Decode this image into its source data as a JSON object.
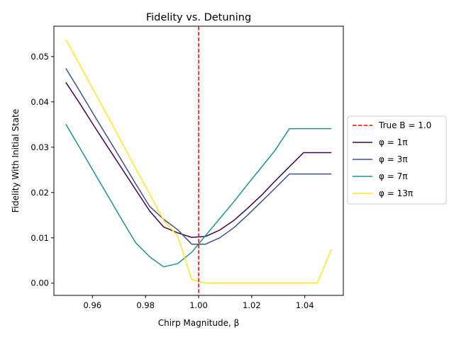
{
  "chart_data": {
    "type": "line",
    "title": "Fidelity vs. Detuning",
    "xlabel": "Chirp Magnitude, β",
    "ylabel": "Fidelity With Initial State",
    "xlim": [
      0.9455,
      1.0545
    ],
    "ylim": [
      -0.0027,
      0.0567
    ],
    "xticks": [
      0.96,
      0.98,
      1.0,
      1.02,
      1.04
    ],
    "xtick_labels": [
      "0.96",
      "0.98",
      "1.00",
      "1.02",
      "1.04"
    ],
    "yticks": [
      0.0,
      0.01,
      0.02,
      0.03,
      0.04,
      0.05
    ],
    "ytick_labels": [
      "0.00",
      "0.01",
      "0.02",
      "0.03",
      "0.04",
      "0.05"
    ],
    "grid": false,
    "legend_position": "outside-right",
    "vline": {
      "x": 1.0,
      "name": "True B = 1.0",
      "color": "#ff0000",
      "dash": "dashed"
    },
    "x": [
      0.95,
      0.9553,
      0.9605,
      0.9658,
      0.9711,
      0.9763,
      0.9816,
      0.9868,
      0.9921,
      0.9974,
      1.0026,
      1.0079,
      1.0132,
      1.0184,
      1.0237,
      1.0289,
      1.0342,
      1.0395,
      1.0447,
      1.05
    ],
    "series": [
      {
        "name": "φ = 1π",
        "color": "#440154",
        "values": [
          0.0443,
          0.0396,
          0.0348,
          0.03,
          0.0253,
          0.0206,
          0.0159,
          0.0124,
          0.0111,
          0.0101,
          0.0103,
          0.0117,
          0.0138,
          0.0165,
          0.0194,
          0.0226,
          0.0257,
          0.0288,
          0.0288,
          0.0288
        ]
      },
      {
        "name": "φ = 3π",
        "color": "#3b528b",
        "values": [
          0.0474,
          0.0423,
          0.0372,
          0.0321,
          0.027,
          0.0219,
          0.0169,
          0.0141,
          0.0118,
          0.0086,
          0.0086,
          0.01,
          0.0122,
          0.015,
          0.018,
          0.021,
          0.0241,
          0.0241,
          0.0241,
          0.0241
        ]
      },
      {
        "name": "φ = 7π",
        "color": "#21918c",
        "values": [
          0.0351,
          0.0298,
          0.0246,
          0.0193,
          0.014,
          0.0089,
          0.0058,
          0.0036,
          0.0043,
          0.0068,
          0.0105,
          0.0142,
          0.0179,
          0.0218,
          0.0256,
          0.0294,
          0.0341,
          0.0341,
          0.0341,
          0.0341
        ]
      },
      {
        "name": "φ = 13π",
        "color": "#fde725",
        "values": [
          0.0538,
          0.0481,
          0.0425,
          0.0368,
          0.031,
          0.0253,
          0.0196,
          0.0139,
          0.0104,
          0.0008,
          0.0,
          0.0,
          0.0,
          0.0,
          0.0,
          0.0,
          0.0,
          0.0,
          0.0,
          0.0075
        ]
      }
    ]
  }
}
